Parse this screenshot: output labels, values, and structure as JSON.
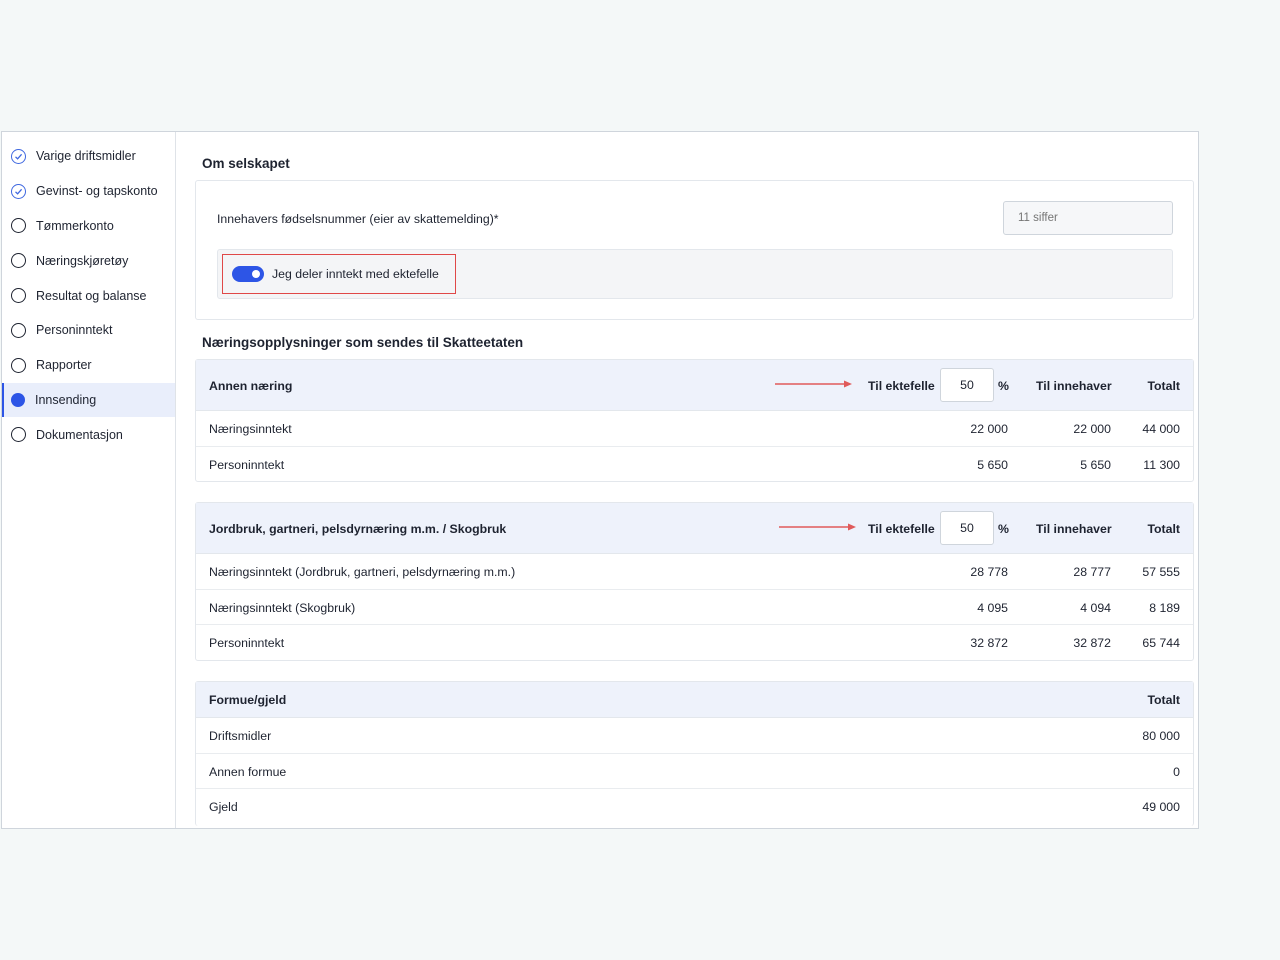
{
  "sidebar": {
    "items": [
      {
        "label": "Varige driftsmidler",
        "status": "done"
      },
      {
        "label": "Gevinst- og tapskonto",
        "status": "done"
      },
      {
        "label": "Tømmerkonto",
        "status": "empty"
      },
      {
        "label": "Næringskjøretøy",
        "status": "empty"
      },
      {
        "label": "Resultat og balanse",
        "status": "empty"
      },
      {
        "label": "Personinntekt",
        "status": "empty"
      },
      {
        "label": "Rapporter",
        "status": "empty"
      },
      {
        "label": "Innsending",
        "status": "current"
      },
      {
        "label": "Dokumentasjon",
        "status": "empty"
      }
    ]
  },
  "company": {
    "title": "Om selskapet",
    "id_label": "Innehavers fødselsnummer (eier av skattemelding)*",
    "id_placeholder": "11 siffer",
    "id_value": "",
    "share_toggle_label": "Jeg deler inntekt med ektefelle",
    "share_toggle_on": true
  },
  "business": {
    "title": "Næringsopplysninger som sendes til Skatteetaten",
    "col_spouse": "Til ektefelle",
    "col_pct": "%",
    "col_owner": "Til innehaver",
    "col_total": "Totalt",
    "tables": [
      {
        "category": "Annen næring",
        "spouse_pct": "50",
        "rows": [
          {
            "label": "Næringsinntekt",
            "spouse": "22 000",
            "owner": "22 000",
            "total": "44 000"
          },
          {
            "label": "Personinntekt",
            "spouse": "5 650",
            "owner": "5 650",
            "total": "11 300"
          }
        ]
      },
      {
        "category": "Jordbruk, gartneri, pelsdyrnæring m.m. / Skogbruk",
        "spouse_pct": "50",
        "rows": [
          {
            "label": "Næringsinntekt (Jordbruk, gartneri, pelsdyrnæring m.m.)",
            "spouse": "28 778",
            "owner": "28 777",
            "total": "57 555"
          },
          {
            "label": "Næringsinntekt (Skogbruk)",
            "spouse": "4 095",
            "owner": "4 094",
            "total": "8 189"
          },
          {
            "label": "Personinntekt",
            "spouse": "32 872",
            "owner": "32 872",
            "total": "65 744"
          }
        ]
      }
    ]
  },
  "wealth": {
    "category": "Formue/gjeld",
    "col_total": "Totalt",
    "rows": [
      {
        "label": "Driftsmidler",
        "total": "80 000"
      },
      {
        "label": "Annen formue",
        "total": "0"
      },
      {
        "label": "Gjeld",
        "total": "49 000"
      }
    ]
  },
  "colors": {
    "accent": "#2d55e6",
    "highlight_border": "#e04848",
    "header_bg": "#eef2fb"
  }
}
